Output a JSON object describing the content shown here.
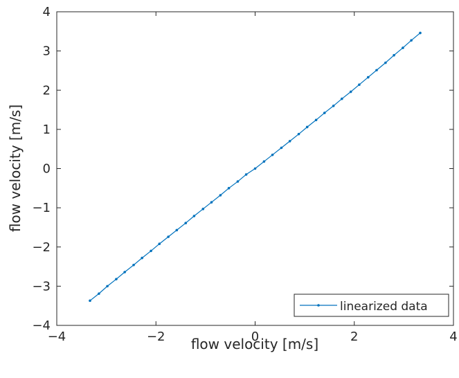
{
  "chart_data": {
    "type": "line",
    "xlabel": "flow velocity [m/s]",
    "ylabel": "flow velocity [m/s]",
    "xlim": [
      -4,
      4
    ],
    "ylim": [
      -4,
      4
    ],
    "xticks": [
      -4,
      -2,
      0,
      2,
      4
    ],
    "yticks": [
      -4,
      -3,
      -2,
      -1,
      0,
      1,
      2,
      3,
      4
    ],
    "grid": false,
    "legend_position": "bottom-right",
    "series": [
      {
        "name": "linearized data",
        "color": "#0072BD",
        "marker": "point",
        "x": [
          -3.33,
          -3.15,
          -2.98,
          -2.8,
          -2.63,
          -2.45,
          -2.28,
          -2.1,
          -1.93,
          -1.75,
          -1.58,
          -1.4,
          -1.23,
          -1.05,
          -0.88,
          -0.7,
          -0.53,
          -0.35,
          -0.18,
          0.0,
          0.18,
          0.35,
          0.53,
          0.7,
          0.88,
          1.05,
          1.23,
          1.4,
          1.58,
          1.75,
          1.93,
          2.1,
          2.28,
          2.45,
          2.63,
          2.8,
          2.98,
          3.15,
          3.33
        ],
        "y": [
          -3.37,
          -3.19,
          -3.0,
          -2.82,
          -2.64,
          -2.46,
          -2.28,
          -2.1,
          -1.92,
          -1.74,
          -1.57,
          -1.39,
          -1.21,
          -1.03,
          -0.86,
          -0.68,
          -0.5,
          -0.33,
          -0.15,
          0.0,
          0.18,
          0.35,
          0.53,
          0.7,
          0.88,
          1.06,
          1.24,
          1.42,
          1.6,
          1.78,
          1.96,
          2.14,
          2.33,
          2.51,
          2.7,
          2.89,
          3.08,
          3.27,
          3.46
        ]
      }
    ]
  }
}
